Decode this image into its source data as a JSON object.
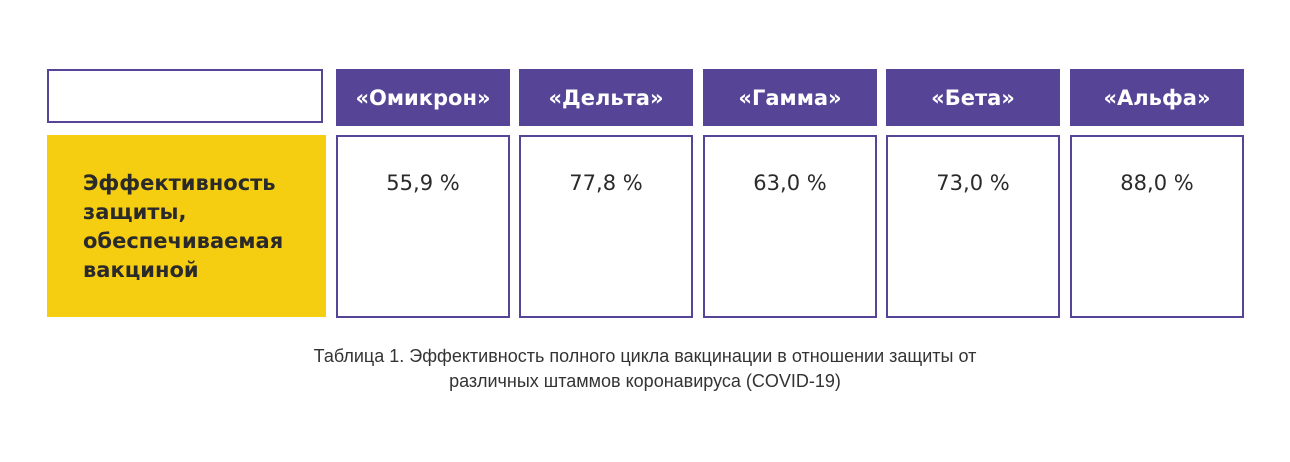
{
  "table": {
    "row_label": "Эффективность защиты, обеспечиваемая вакциной",
    "columns": [
      {
        "header": "«Омикрон»",
        "value": "55,9 %"
      },
      {
        "header": "«Дельта»",
        "value": "77,8 %"
      },
      {
        "header": "«Гамма»",
        "value": "63,0 %"
      },
      {
        "header": "«Бета»",
        "value": "73,0 %"
      },
      {
        "header": "«Альфа»",
        "value": "88,0 %"
      }
    ]
  },
  "caption": {
    "line1": "Таблица 1. Эффективность полного цикла вакцинации в отношении защиты от",
    "line2": "различных штаммов коронавируса (COVID-19)"
  },
  "colors": {
    "header_bg": "#564596",
    "row_header_bg": "#f5ce12",
    "text": "#2a2a2a"
  }
}
